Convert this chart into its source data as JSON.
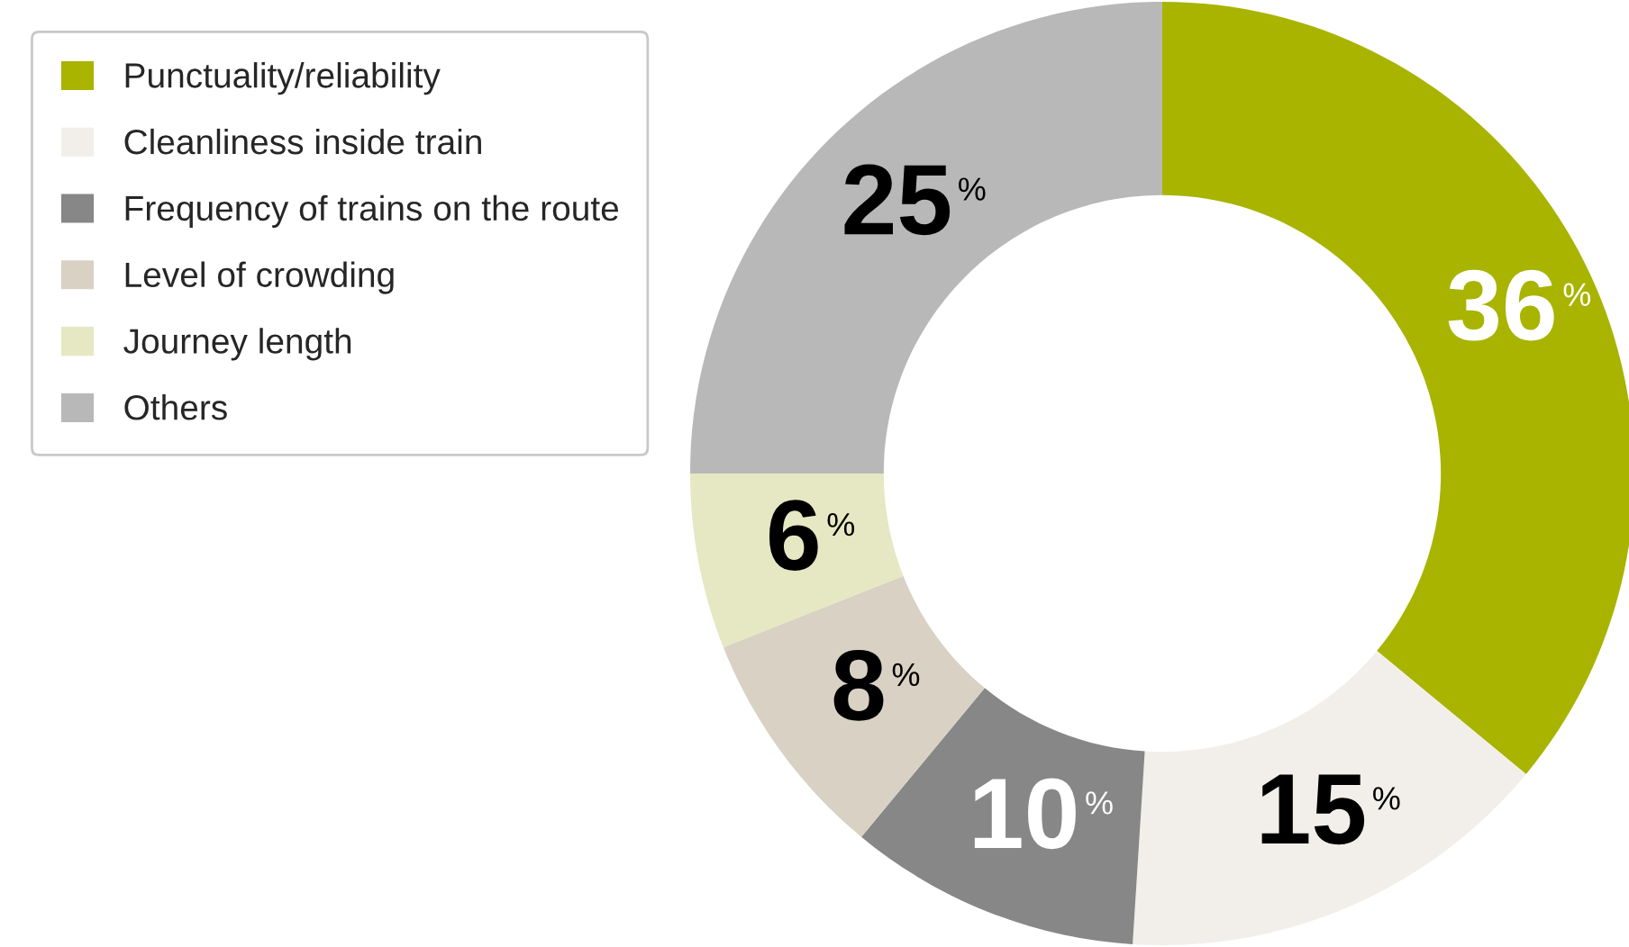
{
  "chart_data": {
    "type": "donut",
    "categories": [
      "Punctuality/reliability",
      "Cleanliness inside train",
      "Frequency of trains on the route",
      "Level of crowding",
      "Journey length",
      "Others"
    ],
    "values": [
      36,
      15,
      10,
      8,
      6,
      25
    ],
    "colors": [
      "#a8b400",
      "#f2efea",
      "#878787",
      "#d9d2c4",
      "#e5e8c2",
      "#b8b8b8"
    ],
    "value_labels": [
      "36%",
      "15%",
      "10%",
      "8%",
      "6%",
      "25%"
    ],
    "legend": "left"
  }
}
